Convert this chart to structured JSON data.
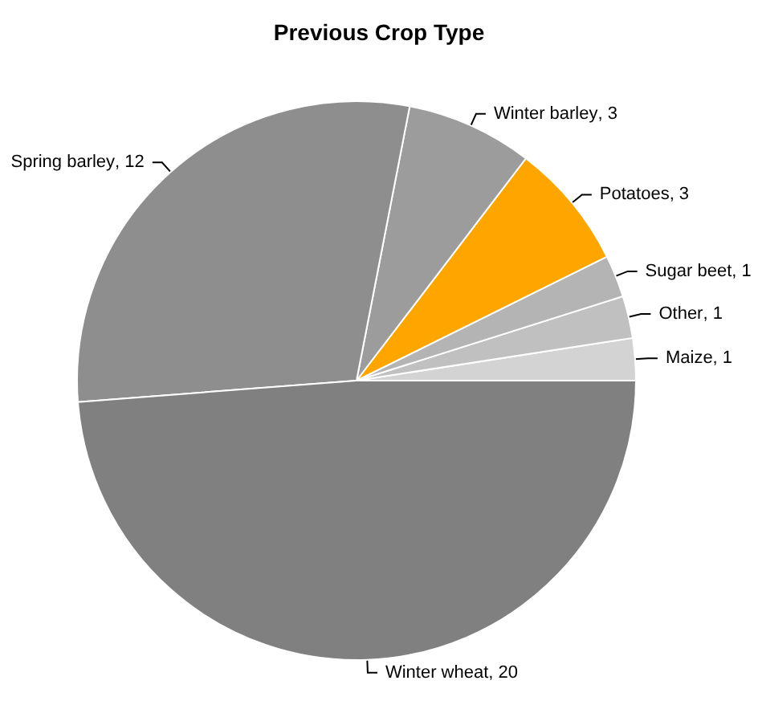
{
  "chart_data": {
    "type": "pie",
    "title": "Previous Crop Type",
    "categories": [
      "Maize",
      "Other",
      "Sugar beet",
      "Potatoes",
      "Winter barley",
      "Spring barley",
      "Winter wheat"
    ],
    "values": [
      1,
      1,
      1,
      3,
      3,
      12,
      20
    ],
    "colors": [
      "#d3d3d3",
      "#c0c0c0",
      "#b4b4b4",
      "#ffa500",
      "#9c9c9c",
      "#8e8e8e",
      "#808080"
    ],
    "value_labels": [
      ", 1",
      ", 1",
      ", 1",
      ", 3",
      ", 3",
      ", 12",
      ", 20"
    ]
  }
}
